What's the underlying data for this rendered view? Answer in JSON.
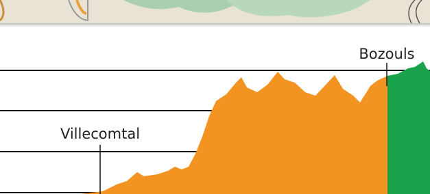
{
  "labels": {
    "bozouls": "Bozouls",
    "villecomtal": "Villecomtal"
  }
}
